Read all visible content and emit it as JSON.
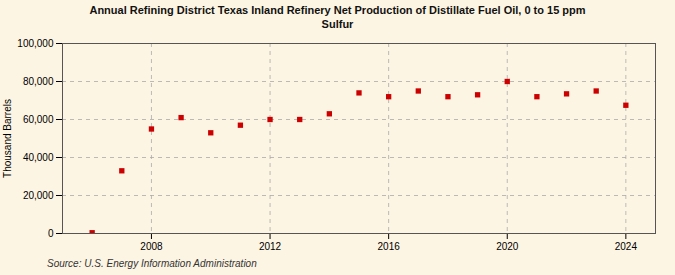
{
  "chart_data": {
    "type": "scatter",
    "title": "Annual Refining District Texas Inland Refinery Net Production of Distillate Fuel Oil, 0 to 15 ppm\nSulfur",
    "ylabel": "Thousand Barrels",
    "annotations": [
      "Source: U.S. Energy Information Administration"
    ],
    "x": [
      2006,
      2007,
      2008,
      2009,
      2010,
      2011,
      2012,
      2013,
      2014,
      2015,
      2016,
      2017,
      2018,
      2019,
      2020,
      2021,
      2022,
      2023,
      2024
    ],
    "values": [
      400,
      33000,
      55000,
      61000,
      53000,
      57000,
      60000,
      60000,
      63000,
      74000,
      72000,
      75000,
      72000,
      73000,
      80000,
      72000,
      73500,
      75000,
      67500
    ],
    "color": "#cc0000",
    "marker": "square",
    "xlim": [
      2005,
      2025
    ],
    "xticks": [
      2008,
      2012,
      2016,
      2020,
      2024
    ],
    "ylim": [
      0,
      100000
    ],
    "yticks": [
      0,
      {
        "value": 20000,
        "label": "20,000"
      },
      {
        "value": 40000,
        "label": "40,000"
      },
      {
        "value": 60000,
        "label": "60,000"
      },
      {
        "value": 80000,
        "label": "80,000"
      },
      {
        "value": 100000,
        "label": "100,000"
      }
    ],
    "grid": true
  }
}
